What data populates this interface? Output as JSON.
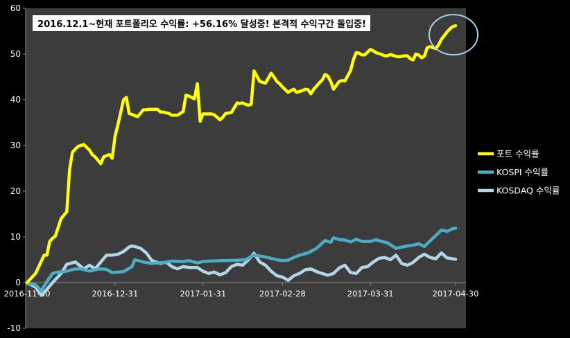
{
  "chart_data": {
    "type": "line",
    "title": "2016.12.1~현재 포트폴리오 수익률: +56.16% 달성중! 본격적 수익구간 돌입중!",
    "xlabel": "",
    "ylabel": "",
    "ylim": [
      -10,
      60
    ],
    "yticks": [
      -10,
      0,
      10,
      20,
      30,
      40,
      50,
      60
    ],
    "xtick_labels": [
      "2016-11-30",
      "2016-12-31",
      "2017-01-31",
      "2017-02-28",
      "2017-03-31",
      "2017-04-30"
    ],
    "xlim": [
      0,
      151
    ],
    "xtick_positions": [
      0,
      31,
      62,
      90,
      121,
      151
    ],
    "grid": false,
    "legend_position": "right",
    "plot_background": "#3c3c3c",
    "page_background": "#000000",
    "annotation": "circle around latest portfolio value",
    "series": [
      {
        "name": "포트 수익률",
        "color": "#ffff00",
        "x": [
          0,
          3,
          6,
          7,
          8,
          9,
          10,
          12,
          14,
          15,
          16,
          17,
          18,
          20,
          22,
          23,
          24,
          26,
          27,
          29,
          30,
          31,
          32,
          34,
          35,
          36,
          37,
          38,
          39,
          41,
          42,
          43,
          46,
          47,
          48,
          50,
          51,
          52,
          53,
          55,
          56,
          57,
          59,
          60,
          61,
          62,
          64,
          65,
          66,
          68,
          69,
          70,
          72,
          74,
          75,
          76,
          77,
          78,
          79,
          80,
          82,
          83,
          84,
          86,
          87,
          88,
          89,
          90,
          92,
          93,
          94,
          95,
          97,
          98,
          99,
          100,
          101,
          103,
          104,
          105,
          106,
          107,
          108,
          110,
          111,
          112,
          114,
          115,
          116,
          117,
          118,
          119,
          121,
          122,
          123,
          125,
          126,
          127,
          128,
          130,
          131,
          133,
          134,
          135,
          136,
          137,
          138,
          139,
          140,
          141,
          142,
          144,
          145,
          146,
          147,
          148,
          149,
          150,
          151
        ],
        "values": [
          0,
          2,
          6,
          6,
          9,
          9.7,
          10.2,
          14,
          15.5,
          24.8,
          28.5,
          29.2,
          29.8,
          30.2,
          29,
          28,
          27.5,
          26,
          27.5,
          28,
          27.2,
          32,
          34.5,
          40,
          40.5,
          37,
          36.8,
          36.5,
          36.3,
          37.8,
          37.8,
          37.9,
          37.9,
          37.3,
          37.3,
          37,
          36.6,
          36.6,
          36.6,
          37.4,
          41,
          40.8,
          40.2,
          43.5,
          35.3,
          36.9,
          36.9,
          36.9,
          36.7,
          35.6,
          36.2,
          37,
          37.2,
          39.3,
          39.2,
          39.3,
          39,
          38.8,
          39,
          46.3,
          44,
          43.8,
          43.6,
          45.8,
          45,
          44,
          43.5,
          42.8,
          41.6,
          42,
          42.3,
          41.6,
          42,
          42.3,
          42.2,
          41.3,
          42.3,
          43.7,
          44.3,
          45.5,
          45.2,
          44,
          42.3,
          44,
          44.2,
          44.1,
          46.4,
          48.8,
          50.3,
          50.2,
          49.8,
          49.8,
          51,
          50.7,
          50.3,
          49.9,
          49.6,
          49.6,
          49.9,
          49.5,
          49.4,
          49.6,
          49.6,
          49,
          48.7,
          50,
          49.8,
          49.2,
          49.5,
          51.4,
          51.6,
          51.2,
          52,
          53.2,
          54,
          54.8,
          55.5,
          56,
          56.2
        ]
      },
      {
        "name": "KOSPI 수익률",
        "color": "#4bacc6",
        "x": [
          0,
          3,
          5,
          7,
          9,
          10,
          14,
          17,
          19,
          22,
          24,
          26,
          28,
          30,
          34,
          37,
          38,
          41,
          44,
          48,
          51,
          55,
          57,
          60,
          62,
          64,
          69,
          74,
          77,
          80,
          84,
          86,
          88,
          90,
          92,
          94,
          96,
          99,
          102,
          105,
          107,
          108,
          110,
          112,
          114,
          116,
          118,
          121,
          123,
          125,
          127,
          130,
          134,
          136,
          138,
          140,
          142,
          144,
          146,
          148,
          150,
          151
        ],
        "values": [
          0,
          -0.5,
          -1.8,
          0.2,
          2,
          2.2,
          2.5,
          3,
          3,
          2.5,
          2.8,
          3,
          2.9,
          2.2,
          2.4,
          3.5,
          5,
          4.5,
          4.2,
          4.4,
          4.7,
          4.6,
          4.8,
          4.3,
          4.6,
          4.7,
          4.8,
          4.9,
          5,
          6,
          5.6,
          5.3,
          5,
          4.8,
          4.9,
          5.5,
          6,
          6.5,
          7.5,
          9.2,
          8.8,
          9.8,
          9.4,
          9.3,
          8.9,
          9.5,
          9,
          9,
          9.4,
          9,
          8.7,
          7.5,
          8,
          8.2,
          8.5,
          7.9,
          9.1,
          10.3,
          11.5,
          11.2,
          11.8,
          11.9
        ]
      },
      {
        "name": "KOSDAQ 수익률",
        "color": "#b0d6e8",
        "x": [
          0,
          3,
          5,
          7,
          9,
          12,
          14,
          17,
          20,
          22,
          24,
          26,
          28,
          30,
          32,
          34,
          36,
          37,
          38,
          40,
          42,
          44,
          47,
          49,
          51,
          53,
          55,
          57,
          60,
          62,
          64,
          66,
          68,
          70,
          72,
          74,
          76,
          78,
          80,
          82,
          84,
          86,
          88,
          90,
          92,
          94,
          96,
          98,
          100,
          102,
          104,
          106,
          108,
          110,
          112,
          114,
          116,
          118,
          120,
          122,
          124,
          126,
          128,
          130,
          132,
          134,
          136,
          138,
          140,
          142,
          144,
          146,
          148,
          150,
          151
        ],
        "values": [
          0,
          -1,
          -2.8,
          -1.5,
          0,
          2,
          4,
          4.5,
          3,
          3.8,
          3,
          4.5,
          6,
          6,
          6.2,
          6.8,
          7.8,
          8,
          7.9,
          7.5,
          6.5,
          4.8,
          4.2,
          4.5,
          3.5,
          3,
          3.5,
          3.3,
          3.3,
          2.5,
          2,
          2.3,
          1.7,
          2.2,
          3.5,
          4,
          3.8,
          5,
          6.4,
          4.5,
          3.8,
          2.5,
          1.5,
          1.2,
          0.5,
          1.5,
          2,
          2.8,
          3,
          2.4,
          2,
          1.6,
          2,
          3.2,
          3.8,
          2.2,
          2,
          3.3,
          3.5,
          4.5,
          5.3,
          5.5,
          5,
          6,
          4.2,
          3.8,
          4.4,
          5.5,
          6.2,
          5.5,
          5.2,
          6.5,
          5.4,
          5.2,
          5.1
        ]
      }
    ]
  }
}
